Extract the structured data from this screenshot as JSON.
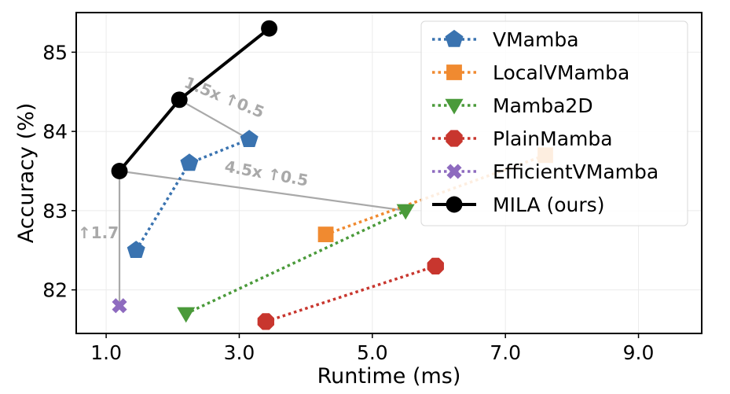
{
  "chart_data": {
    "type": "scatter",
    "title": "",
    "xlabel": "Runtime (ms)",
    "ylabel": "Accuracy (%)",
    "xlim": [
      0.55,
      9.95
    ],
    "ylim": [
      81.45,
      85.5
    ],
    "xticks": [
      1.0,
      3.0,
      5.0,
      7.0,
      9.0
    ],
    "xtick_labels": [
      "1.0",
      "3.0",
      "5.0",
      "7.0",
      "9.0"
    ],
    "yticks": [
      82,
      83,
      84,
      85
    ],
    "ytick_labels": [
      "82",
      "83",
      "84",
      "85"
    ],
    "grid": true,
    "legend_position": "upper right",
    "series": [
      {
        "name": "VMamba",
        "color": "#3a73b0",
        "marker": "pentagon",
        "line": "dotted",
        "points": [
          [
            1.45,
            82.5
          ],
          [
            2.25,
            83.6
          ],
          [
            3.15,
            83.9
          ]
        ]
      },
      {
        "name": "LocalVMamba",
        "color": "#f08a30",
        "marker": "square",
        "line": "dotted",
        "points": [
          [
            4.3,
            82.7
          ],
          [
            7.6,
            83.7
          ]
        ]
      },
      {
        "name": "Mamba2D",
        "color": "#4a9a3a",
        "marker": "triangle-down",
        "line": "dotted",
        "points": [
          [
            2.2,
            81.7
          ],
          [
            5.5,
            83.0
          ]
        ]
      },
      {
        "name": "PlainMamba",
        "color": "#c8362e",
        "marker": "octagon",
        "line": "dotted",
        "points": [
          [
            3.4,
            81.6
          ],
          [
            5.95,
            82.3
          ]
        ]
      },
      {
        "name": "EfficientVMamba",
        "color": "#8e6bbf",
        "marker": "x",
        "line": "dotted",
        "points": [
          [
            1.2,
            81.8
          ]
        ]
      },
      {
        "name": "MILA (ours)",
        "color": "#000000",
        "marker": "circle",
        "line": "solid",
        "points": [
          [
            1.2,
            83.5
          ],
          [
            2.1,
            84.4
          ],
          [
            3.45,
            85.3
          ]
        ]
      }
    ],
    "annotations": [
      {
        "text": "↑1.7",
        "from": [
          1.2,
          81.8
        ],
        "to": [
          1.2,
          83.5
        ]
      },
      {
        "text": "4.5x ↑0.5",
        "from": [
          1.2,
          83.5
        ],
        "to": [
          5.5,
          83.0
        ]
      },
      {
        "text": "1.5x ↑0.5",
        "from": [
          2.1,
          84.4
        ],
        "to": [
          3.15,
          83.9
        ]
      }
    ]
  }
}
